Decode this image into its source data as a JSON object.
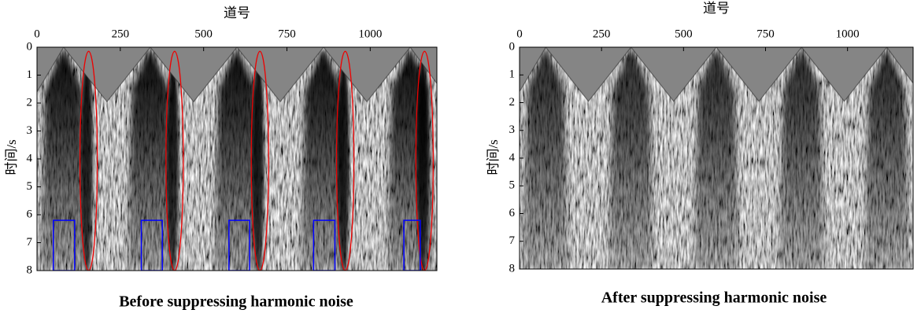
{
  "chart_data": [
    {
      "type": "seismic",
      "title": "Before suppressing harmonic noise",
      "xlabel": "道号",
      "ylabel": "时间/s",
      "xlim": [
        0,
        1200
      ],
      "xticks": [
        0,
        250,
        500,
        750,
        1000
      ],
      "ylim": [
        0,
        8
      ],
      "yticks": [
        0,
        1,
        2,
        3,
        4,
        5,
        6,
        7,
        8
      ]
    },
    {
      "type": "seismic",
      "title": "After suppressing harmonic noise",
      "xlabel": "道号",
      "ylabel": "时间/s",
      "xlim": [
        0,
        1200
      ],
      "xticks": [
        0,
        250,
        500,
        750,
        1000
      ],
      "ylim": [
        0,
        8
      ],
      "yticks": [
        0,
        1,
        2,
        3,
        4,
        5,
        6,
        7,
        8
      ]
    }
  ]
}
